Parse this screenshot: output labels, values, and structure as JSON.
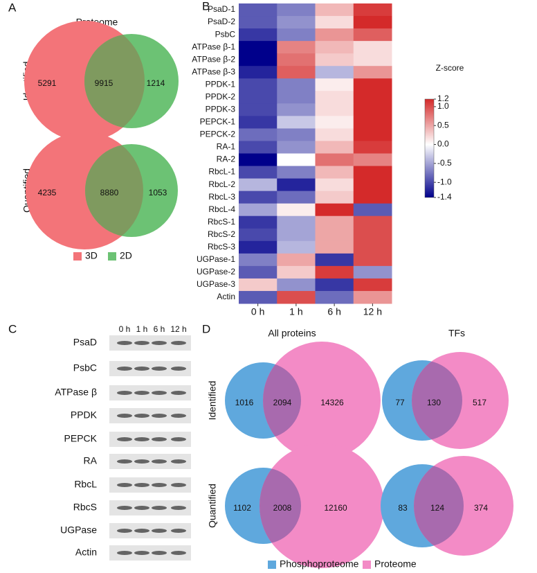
{
  "chart_data": [
    {
      "type": "venn",
      "panel": "A",
      "columns": [
        "Proteome"
      ],
      "rows": [
        "Identified",
        "Quantified"
      ],
      "sets": [
        {
          "name": "3D",
          "color": "#f37479"
        },
        {
          "name": "2D",
          "color": "#6cc274"
        }
      ],
      "overlap_color": "#7f9a5f",
      "values": [
        [
          [
            5291,
            9915,
            1214
          ]
        ],
        [
          [
            4235,
            8880,
            1053
          ]
        ]
      ]
    },
    {
      "type": "heatmap",
      "panel": "B",
      "categories": [
        "0 h",
        "1 h",
        "6 h",
        "12 h"
      ],
      "rows": [
        "PsaD-1",
        "PsaD-2",
        "PsbC",
        "ATPase β-1",
        "ATPase β-2",
        "ATPase β-3",
        "PPDK-1",
        "PPDK-2",
        "PPDK-3",
        "PEPCK-1",
        "PEPCK-2",
        "RA-1",
        "RA-2",
        "RbcL-1",
        "RbcL-2",
        "RbcL-3",
        "RbcL-4",
        "RbcS-1",
        "RbcS-2",
        "RbcS-3",
        "UGPase-1",
        "UGPase-2",
        "UGPase-3",
        "Actin"
      ],
      "values": [
        [
          -0.9,
          -0.7,
          0.4,
          1.1
        ],
        [
          -0.9,
          -0.6,
          0.2,
          1.2
        ],
        [
          -1.1,
          -0.7,
          0.6,
          0.9
        ],
        [
          -1.4,
          0.7,
          0.4,
          0.2
        ],
        [
          -1.4,
          0.8,
          0.3,
          0.2
        ],
        [
          -1.2,
          0.9,
          -0.4,
          0.6
        ],
        [
          -1.0,
          -0.7,
          0.1,
          1.2
        ],
        [
          -1.0,
          -0.7,
          0.2,
          1.2
        ],
        [
          -1.0,
          -0.6,
          0.2,
          1.2
        ],
        [
          -1.1,
          -0.3,
          0.1,
          1.2
        ],
        [
          -0.8,
          -0.7,
          0.2,
          1.2
        ],
        [
          -1.0,
          -0.6,
          0.4,
          1.1
        ],
        [
          -1.4,
          0.0,
          0.8,
          0.7
        ],
        [
          -1.0,
          -0.7,
          0.4,
          1.2
        ],
        [
          -0.4,
          -1.2,
          0.2,
          1.2
        ],
        [
          -1.0,
          -0.8,
          0.3,
          1.2
        ],
        [
          -0.5,
          0.1,
          1.2,
          -0.9
        ],
        [
          -1.1,
          -0.5,
          0.5,
          1.0
        ],
        [
          -1.0,
          -0.5,
          0.5,
          1.0
        ],
        [
          -1.2,
          -0.4,
          0.5,
          1.0
        ],
        [
          -0.7,
          0.5,
          -1.1,
          1.0
        ],
        [
          -0.9,
          0.3,
          1.1,
          -0.6
        ],
        [
          0.3,
          -0.6,
          -1.1,
          1.1
        ],
        [
          -0.9,
          1.0,
          -0.8,
          0.6
        ]
      ],
      "colorbar_title": "Z-score",
      "zlim": [
        -1.4,
        1.2
      ],
      "zticks": [
        1.2,
        {
          "value": 1,
          "label": "1.0"
        },
        0.5,
        {
          "value": 0,
          "label": "0.0"
        },
        -0.5,
        {
          "value": -1,
          "label": "-1.0"
        },
        -1.4
      ],
      "colors": [
        "#00008b",
        "#ffffff",
        "#d42a2a"
      ]
    },
    {
      "type": "blot",
      "panel": "C",
      "columns": [
        "0 h",
        "1 h",
        "6 h",
        "12 h"
      ],
      "rows": [
        "PsaD",
        "PsbC",
        "ATPase β",
        "PPDK",
        "PEPCK",
        "RA",
        "RbcL",
        "RbcS",
        "UGPase",
        "Actin"
      ]
    },
    {
      "type": "venn",
      "panel": "D",
      "columns": [
        "All proteins",
        "TFs"
      ],
      "rows": [
        "Identified",
        "Quantified"
      ],
      "sets": [
        {
          "name": "Phosphoproteome",
          "color": "#5fa8dd"
        },
        {
          "name": "Proteome",
          "color": "#f38bc6"
        }
      ],
      "overlap_color": "#a86aae",
      "values": [
        [
          [
            1016,
            2094,
            14326
          ],
          [
            77,
            130,
            517
          ]
        ],
        [
          [
            1102,
            2008,
            12160
          ],
          [
            83,
            124,
            374
          ]
        ]
      ]
    }
  ]
}
